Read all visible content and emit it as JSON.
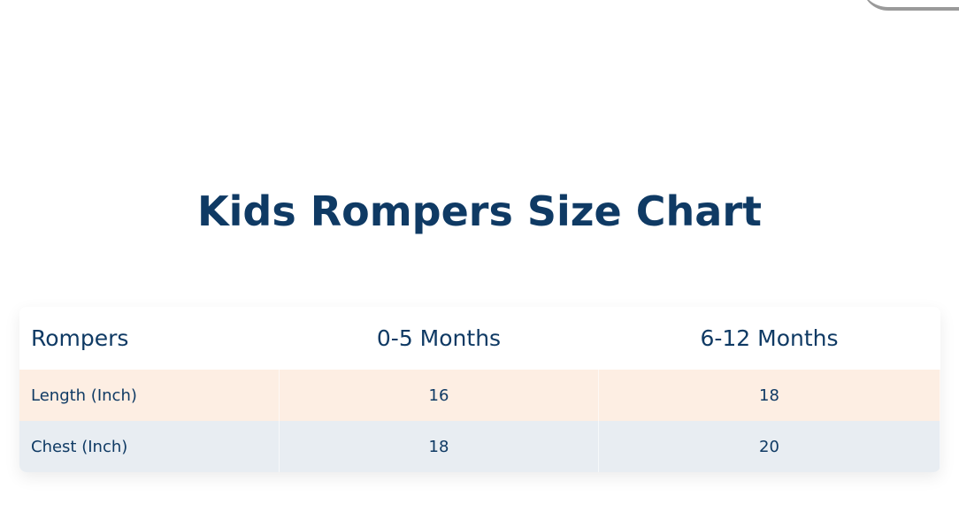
{
  "title": "Kids Rompers Size Chart",
  "table": {
    "header": [
      "Rompers",
      "0-5 Months",
      "6-12 Months"
    ],
    "rows": [
      [
        "Length (Inch)",
        "16",
        "18"
      ],
      [
        "Chest (Inch)",
        "18",
        "20"
      ]
    ]
  }
}
